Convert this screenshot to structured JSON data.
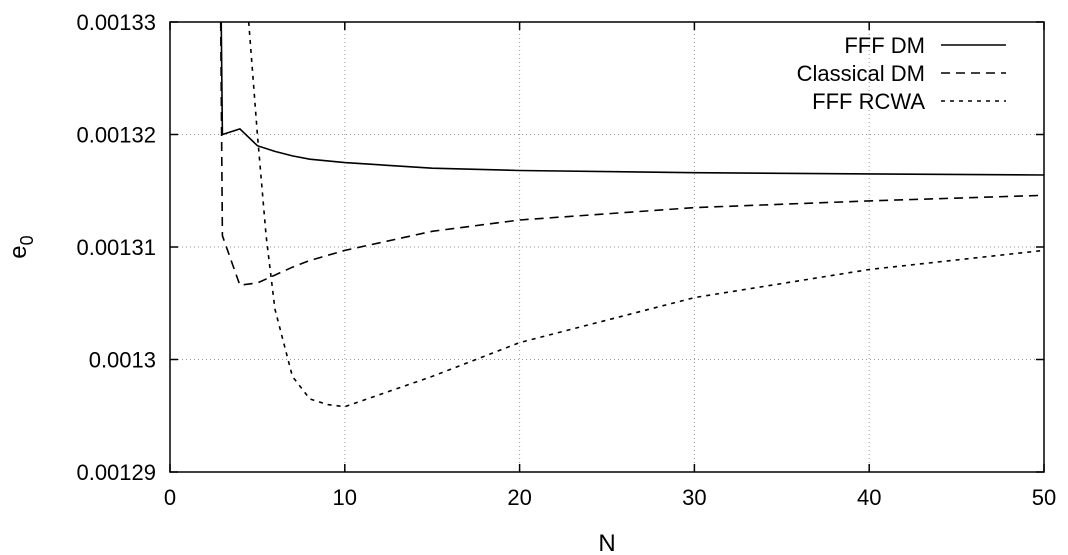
{
  "chart_data": {
    "type": "line",
    "title": "",
    "xlabel": "N",
    "ylabel": "e",
    "ylabel_subscript": "0",
    "xlim": [
      0,
      50
    ],
    "ylim": [
      0.00129,
      0.00133
    ],
    "xticks": [
      0,
      10,
      20,
      30,
      40,
      50
    ],
    "xtick_labels": [
      "0",
      "10",
      "20",
      "30",
      "40",
      "50"
    ],
    "yticks": [
      0.00129,
      0.0013,
      0.00131,
      0.00132,
      0.00133
    ],
    "ytick_labels": [
      "0.00129",
      "0.0013",
      "0.00131",
      "0.00132",
      "0.00133"
    ],
    "grid": true,
    "legend_position": "top-right",
    "series": [
      {
        "name": "FFF DM",
        "dash": "solid",
        "x": [
          2.8,
          3,
          4,
          5,
          6,
          7,
          8,
          10,
          15,
          20,
          30,
          40,
          50
        ],
        "y": [
          0.00135,
          0.00132,
          0.0013205,
          0.001319,
          0.0013185,
          0.0013181,
          0.0013178,
          0.0013175,
          0.001317,
          0.0013168,
          0.0013166,
          0.0013165,
          0.0013164
        ]
      },
      {
        "name": "Classical DM",
        "dash": "dashed",
        "x": [
          2.8,
          3,
          4,
          5,
          6,
          7,
          8,
          10,
          15,
          20,
          30,
          40,
          50
        ],
        "y": [
          0.00135,
          0.001311,
          0.0013066,
          0.0013068,
          0.0013075,
          0.0013082,
          0.0013088,
          0.0013097,
          0.0013114,
          0.0013124,
          0.0013135,
          0.0013141,
          0.0013146
        ]
      },
      {
        "name": "FFF RCWA",
        "dash": "dotted",
        "x": [
          4.5,
          5,
          5.5,
          6,
          7,
          8,
          9,
          10,
          15,
          20,
          30,
          40,
          50
        ],
        "y": [
          0.00133,
          0.00132,
          0.001311,
          0.0013045,
          0.0012985,
          0.0012965,
          0.001296,
          0.0012958,
          0.0012985,
          0.0013015,
          0.0013055,
          0.001308,
          0.0013097
        ]
      }
    ]
  }
}
